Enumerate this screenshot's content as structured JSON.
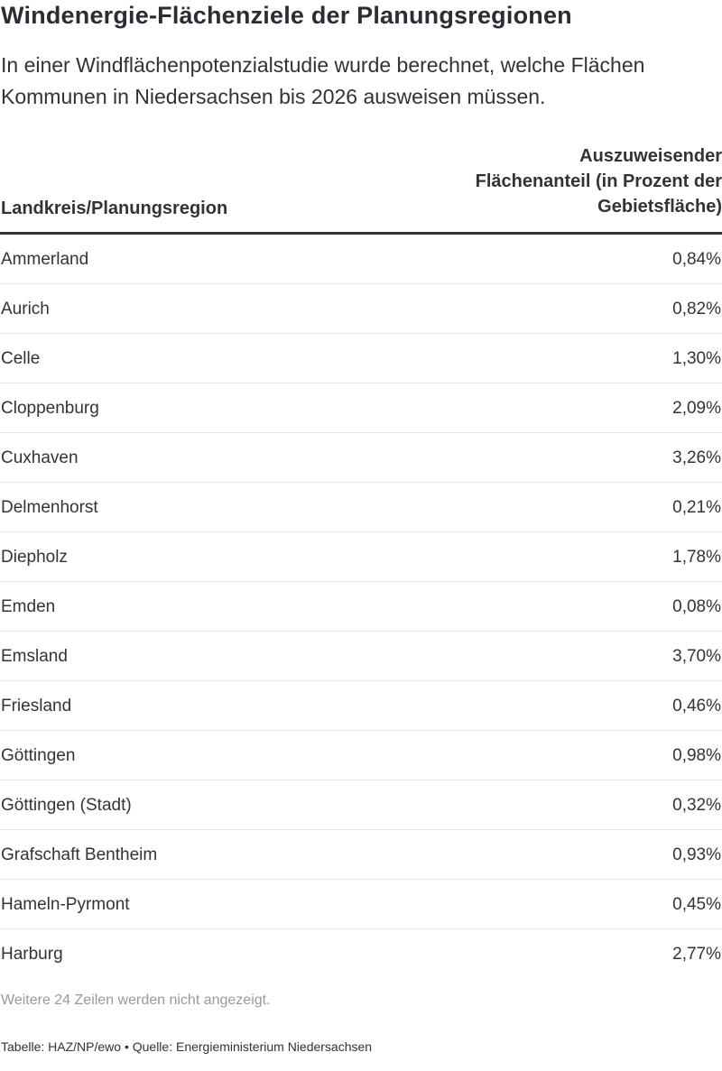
{
  "title": "Windenergie-Flächenziele der Planungsregionen",
  "subtitle": "In einer Windflächenpotenzialstudie wurde berechnet, welche Flächen Kommunen in Niedersachsen bis 2026 ausweisen müssen.",
  "chart_data": {
    "type": "table",
    "columns": [
      "Landkreis/Planungsregion",
      "Auszuweisender Flächenanteil (in Prozent der Gebietsfläche)"
    ],
    "rows": [
      {
        "region": "Ammerland",
        "value": "0,84%"
      },
      {
        "region": "Aurich",
        "value": "0,82%"
      },
      {
        "region": "Celle",
        "value": "1,30%"
      },
      {
        "region": "Cloppenburg",
        "value": "2,09%"
      },
      {
        "region": "Cuxhaven",
        "value": "3,26%"
      },
      {
        "region": "Delmenhorst",
        "value": "0,21%"
      },
      {
        "region": "Diepholz",
        "value": "1,78%"
      },
      {
        "region": "Emden",
        "value": "0,08%"
      },
      {
        "region": "Emsland",
        "value": "3,70%"
      },
      {
        "region": "Friesland",
        "value": "0,46%"
      },
      {
        "region": "Göttingen",
        "value": "0,98%"
      },
      {
        "region": "Göttingen (Stadt)",
        "value": "0,32%"
      },
      {
        "region": "Grafschaft Bentheim",
        "value": "0,93%"
      },
      {
        "region": "Hameln-Pyrmont",
        "value": "0,45%"
      },
      {
        "region": "Harburg",
        "value": "2,77%"
      }
    ]
  },
  "hidden_rows_note": "Weitere 24 Zeilen werden nicht angezeigt.",
  "footer": "Tabelle: HAZ/NP/ewo • Quelle: Energieministerium Niedersachsen",
  "colors": {
    "title": "#2a2d35",
    "text": "#333333",
    "muted": "#999999",
    "row_divider": "#e6e6e6",
    "header_rule": "#333333"
  }
}
